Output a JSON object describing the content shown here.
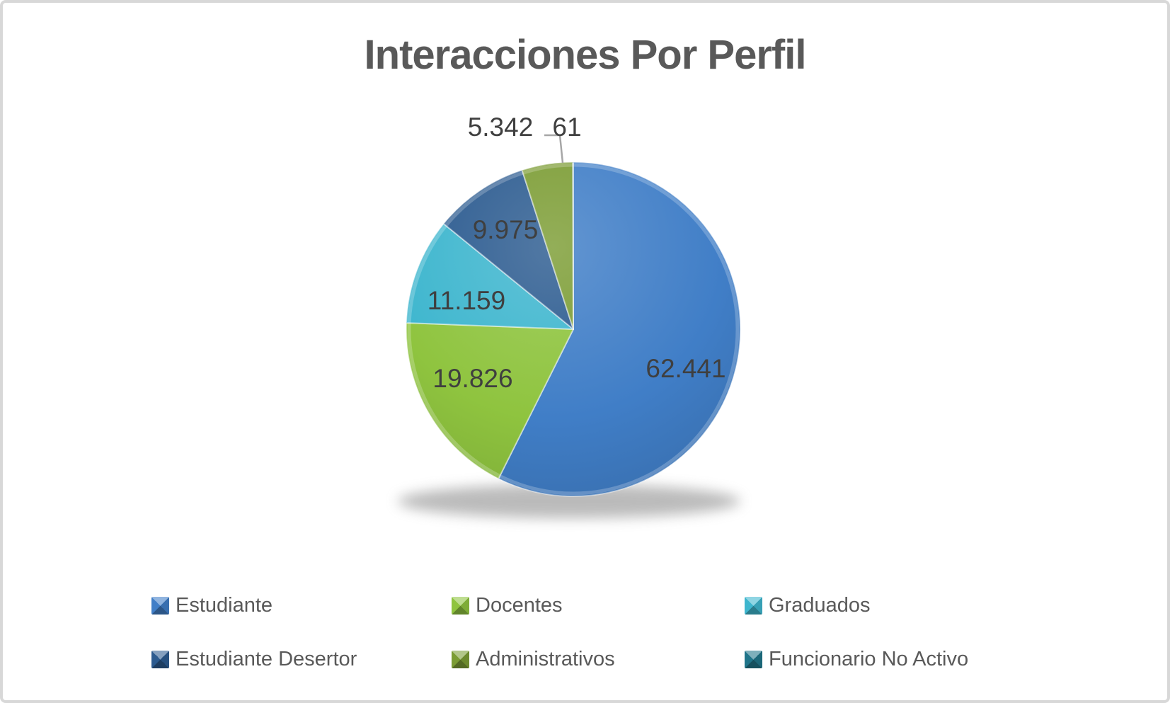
{
  "chart_data": {
    "type": "pie",
    "title": "Interacciones Por Perfil",
    "legend_position": "bottom",
    "direction": "clockwise",
    "start_angle_deg": 0,
    "series": [
      {
        "name": "Estudiante",
        "value": 62441,
        "label": "62.441",
        "color": "#407EC7",
        "label_placement": "inside"
      },
      {
        "name": "Docentes",
        "value": 19826,
        "label": "19.826",
        "color": "#8FC43F",
        "label_placement": "inside"
      },
      {
        "name": "Graduados",
        "value": 11159,
        "label": "11.159",
        "color": "#3EB6CE",
        "label_placement": "inside"
      },
      {
        "name": "Estudiante Desertor",
        "value": 9975,
        "label": "9.975",
        "color": "#2C5B90",
        "label_placement": "inside"
      },
      {
        "name": "Administrativos",
        "value": 5342,
        "label": "5.342",
        "color": "#7B9C33",
        "label_placement": "outside"
      },
      {
        "name": "Funcionario No Activo",
        "value": 61,
        "label": "61",
        "color": "#20758A",
        "label_placement": "outside",
        "leader_line": true
      }
    ]
  },
  "colors": {
    "title_text": "#595959",
    "data_label_text": "#3F3F3F",
    "legend_text": "#595959",
    "leader_line": "#A6A6A6",
    "frame_border": "#D8D8D8",
    "background": "#FFFFFF"
  }
}
